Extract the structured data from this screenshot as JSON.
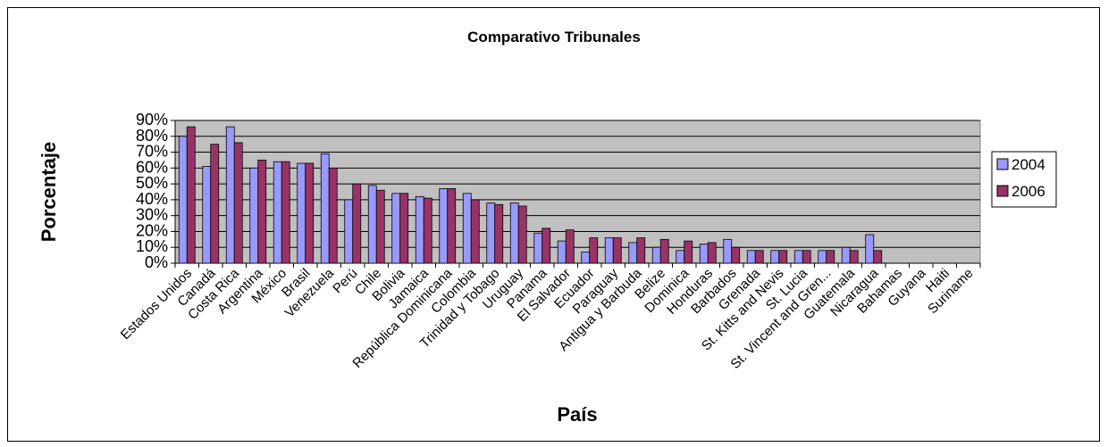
{
  "chart_data": {
    "type": "bar",
    "title": "Comparativo Tribunales",
    "xlabel": "País",
    "ylabel": "Porcentaje",
    "categories": [
      "Estados Unidos",
      "Canadá",
      "Costa Rica",
      "Argentina",
      "México",
      "Brasil",
      "Venezuela",
      "Perú",
      "Chile",
      "Bolivia",
      "Jamaica",
      "República Dominicana",
      "Colombia",
      "Trinidad y Tobago",
      "Uruguay",
      "Panama",
      "El Salvador",
      "Ecuador",
      "Paraguay",
      "Antigua y Barbuda",
      "Belize",
      "Dominica",
      "Honduras",
      "Barbados",
      "Grenada",
      "St. Kitts and Nevis",
      "St. Lucia",
      "St. Vincent and Gren...",
      "Guatemala",
      "Nicaragua",
      "Bahamas",
      "Guyana",
      "Haiti",
      "Suriname"
    ],
    "series": [
      {
        "name": "2004",
        "color": "#9999ff",
        "values": [
          80,
          61,
          86,
          60,
          64,
          63,
          69,
          40,
          49,
          44,
          42,
          47,
          44,
          38,
          38,
          19,
          14,
          7,
          16,
          13,
          10,
          8,
          12,
          15,
          8,
          8,
          8,
          8,
          10,
          18,
          null,
          null,
          null,
          null
        ]
      },
      {
        "name": "2006",
        "color": "#993366",
        "values": [
          86,
          75,
          76,
          65,
          64,
          63,
          60,
          50,
          46,
          44,
          41,
          47,
          40,
          37,
          36,
          22,
          21,
          16,
          16,
          16,
          15,
          14,
          13,
          10,
          8,
          8,
          8,
          8,
          8,
          8,
          null,
          null,
          null,
          null
        ]
      }
    ],
    "ylim": [
      0,
      90
    ],
    "yticks": [
      {
        "value": 0,
        "label": "0%"
      },
      {
        "value": 10,
        "label": "10%"
      },
      {
        "value": 20,
        "label": "20%"
      },
      {
        "value": 30,
        "label": "30%"
      },
      {
        "value": 40,
        "label": "40%"
      },
      {
        "value": 50,
        "label": "50%"
      },
      {
        "value": 60,
        "label": "60%"
      },
      {
        "value": 70,
        "label": "70%"
      },
      {
        "value": 80,
        "label": "80%"
      },
      {
        "value": 90,
        "label": "90%"
      }
    ],
    "grid": true,
    "legend": "right",
    "plot_background": "#c0c0c0"
  }
}
